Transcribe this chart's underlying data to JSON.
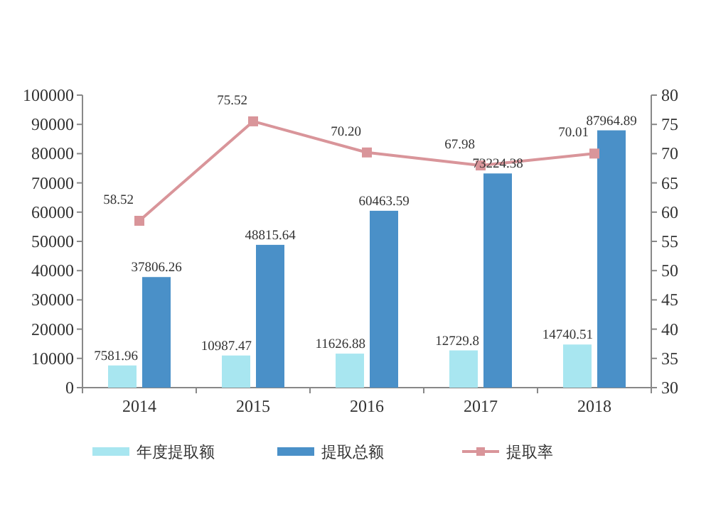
{
  "chart_data": {
    "type": "bar",
    "categories": [
      "2014",
      "2015",
      "2016",
      "2017",
      "2018"
    ],
    "series": [
      {
        "name": "年度提取额",
        "color": "#a8e6f0",
        "values": [
          7581.96,
          10987.47,
          11626.88,
          12729.8,
          14740.51
        ]
      },
      {
        "name": "提取总额",
        "color": "#4a90c8",
        "values": [
          37806.26,
          48815.64,
          60463.59,
          73224.38,
          87964.89
        ]
      },
      {
        "name": "提取率",
        "type": "line",
        "axis": "y2",
        "color": "#d9959a",
        "marker": "square",
        "values": [
          58.52,
          75.52,
          70.2,
          67.98,
          70.01
        ],
        "value_labels": [
          "58.52",
          "75.52",
          "70.20",
          "67.98",
          "70.01"
        ]
      }
    ],
    "ylim": [
      0,
      100000
    ],
    "yticks": [
      0,
      10000,
      20000,
      30000,
      40000,
      50000,
      60000,
      70000,
      80000,
      90000,
      100000
    ],
    "y2lim": [
      30,
      80
    ],
    "y2ticks": [
      30,
      35,
      40,
      45,
      50,
      55,
      60,
      65,
      70,
      75,
      80
    ],
    "data_labels": true,
    "legend": "bottom",
    "grid": false
  }
}
